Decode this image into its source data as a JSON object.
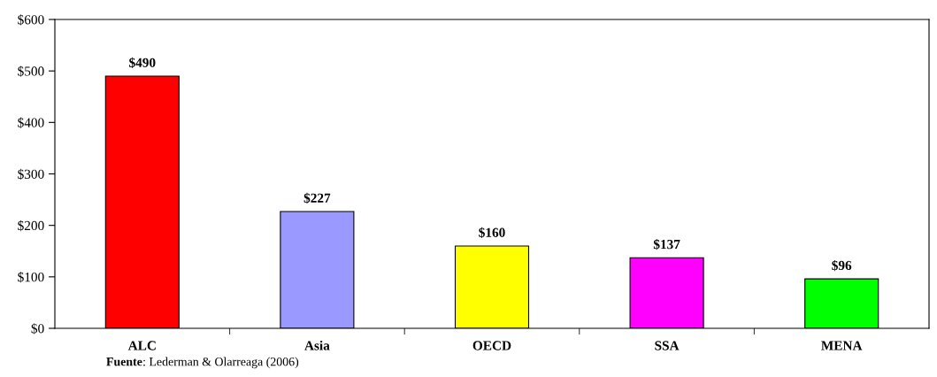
{
  "chart_data": {
    "type": "bar",
    "categories": [
      "ALC",
      "Asia",
      "OECD",
      "SSA",
      "MENA"
    ],
    "values": [
      490,
      227,
      160,
      137,
      96
    ],
    "colors": [
      "#ff0000",
      "#9999ff",
      "#ffff00",
      "#ff00ff",
      "#00ff00"
    ],
    "value_labels": [
      "$490",
      "$227",
      "$160",
      "$137",
      "$96"
    ],
    "ylim": [
      0,
      600
    ],
    "yticks": [
      {
        "value": 0,
        "label": "$0"
      },
      {
        "value": 100,
        "label": "$100"
      },
      {
        "value": 200,
        "label": "$200"
      },
      {
        "value": 300,
        "label": "$300"
      },
      {
        "value": 400,
        "label": "$400"
      },
      {
        "value": 500,
        "label": "$500"
      },
      {
        "value": 600,
        "label": "$600"
      }
    ],
    "grid": false,
    "legend": false,
    "annotations": [
      "Fuente: Lederman & Olarreaga (2006)"
    ]
  }
}
